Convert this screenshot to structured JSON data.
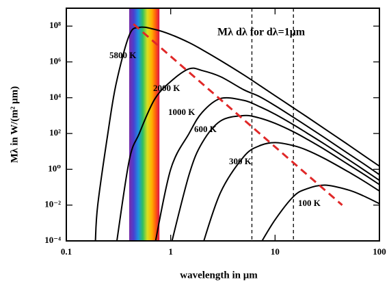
{
  "chart_data": {
    "type": "line",
    "title": "Mλ dλ for dλ=1μm",
    "x_label": "wavelength in μm",
    "y_label": "Mλ in W/(m² μm)",
    "log_x": true,
    "log_y": true,
    "xlim": [
      0.1,
      100
    ],
    "xticks": [
      0.1,
      1,
      10,
      100
    ],
    "ylim": [
      0.0001,
      1000000000
    ],
    "yticks": [
      {
        "value": 0.0001,
        "label": "10⁻⁴"
      },
      {
        "value": 0.01,
        "label": "10⁻²"
      },
      {
        "value": 1,
        "label": "10⁰"
      },
      {
        "value": 100,
        "label": "10²"
      },
      {
        "value": 10000,
        "label": "10⁴"
      },
      {
        "value": 1000000,
        "label": "10⁶"
      },
      {
        "value": 100000000,
        "label": "10⁸"
      }
    ],
    "x": [
      0.19,
      0.2,
      0.25,
      0.3,
      0.4,
      0.5,
      0.7,
      1,
      1.5,
      2,
      3,
      5,
      7,
      10,
      15,
      20,
      30,
      50,
      70,
      100
    ],
    "series": [
      {
        "name": "5800 K",
        "color": "#000000",
        "values": [
          0.0001,
          0.01,
          100,
          60000,
          30000000,
          85000000,
          66000000,
          34000000,
          12000000,
          4800000,
          1200000,
          190000,
          52000,
          13000,
          2700,
          890,
          180,
          24,
          6.2,
          1.5
        ]
      },
      {
        "name": "2000 K",
        "color": "#000000",
        "values": [
          null,
          null,
          null,
          5e-05,
          3,
          100,
          8000,
          80000,
          410000,
          330000,
          150000,
          28000,
          12000,
          3600,
          800,
          270,
          57,
          7.7,
          2.1,
          0.5
        ]
      },
      {
        "name": "1000 K",
        "color": "#000000",
        "values": [
          null,
          null,
          null,
          null,
          null,
          null,
          5e-05,
          1,
          100,
          1500,
          9000,
          7100,
          3300,
          1200,
          310,
          110,
          25,
          3.6,
          0.98,
          0.24
        ]
      },
      {
        "name": "600 K",
        "color": "#000000",
        "values": [
          null,
          null,
          null,
          null,
          null,
          null,
          null,
          5e-05,
          0.5,
          30,
          500,
          1000,
          750,
          370,
          125,
          50,
          12.6,
          1.9,
          0.55,
          0.14
        ]
      },
      {
        "name": "300 K",
        "color": "#000000",
        "values": [
          null,
          null,
          null,
          null,
          null,
          null,
          null,
          null,
          null,
          5e-05,
          0.05,
          5,
          20,
          31,
          21,
          12,
          3.9,
          0.74,
          0.23,
          0.061
        ]
      },
      {
        "name": "100 K",
        "color": "#000000",
        "values": [
          null,
          null,
          null,
          null,
          null,
          null,
          null,
          null,
          null,
          null,
          null,
          null,
          5e-05,
          0.0015,
          0.03,
          0.08,
          0.13,
          0.071,
          0.033,
          0.012
        ]
      }
    ],
    "peak_line": {
      "color": "#e02828",
      "x": [
        0.44,
        44
      ],
      "values": [
        130000000,
        0.01
      ]
    },
    "vlines": [
      6,
      15
    ],
    "visible_band": [
      0.4,
      0.78
    ]
  }
}
